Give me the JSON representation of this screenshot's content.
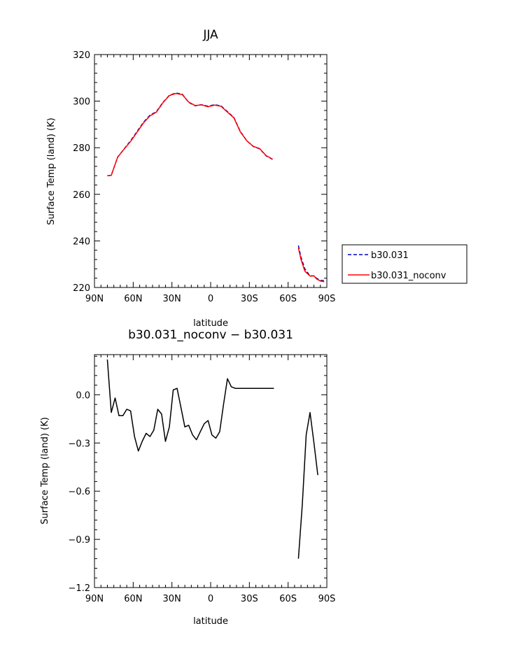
{
  "chart_data": [
    {
      "type": "line",
      "title": "JJA",
      "xlabel": "latitude",
      "ylabel": "Surface Temp (land) (K)",
      "xlim": [
        90,
        -90
      ],
      "ylim": [
        220,
        320
      ],
      "yticks": [
        220,
        240,
        260,
        280,
        300,
        320
      ],
      "xticks": [
        90,
        60,
        30,
        0,
        -30,
        -60,
        -90
      ],
      "xtick_labels": [
        "90N",
        "60N",
        "30N",
        "0",
        "30S",
        "60S",
        "90S"
      ],
      "legend_position": "right",
      "series": [
        {
          "name": "b30.031",
          "color": "#0000cc",
          "style": "dashed",
          "segments": [
            {
              "x": [
                80,
                77,
                72,
                67,
                62,
                57,
                52,
                47,
                42,
                37,
                32,
                27,
                22,
                17,
                12,
                7,
                2,
                -3,
                -8,
                -13,
                -18,
                -23,
                -28,
                -33,
                -38,
                -43,
                -48
              ],
              "y": [
                268,
                268.2,
                276,
                279.5,
                283,
                287,
                291,
                294,
                295.5,
                299.5,
                302.5,
                303.5,
                303,
                299.5,
                298,
                298.5,
                297.8,
                298.5,
                298,
                295.5,
                293,
                287,
                283,
                280.5,
                279.5,
                276.5,
                275
              ]
            },
            {
              "x": [
                -68,
                -70,
                -73,
                -77,
                -80,
                -82,
                -85,
                -88
              ],
              "y": [
                238,
                233,
                228,
                225,
                225,
                224,
                223,
                223
              ]
            }
          ]
        },
        {
          "name": "b30.031_noconv",
          "color": "#ff0000",
          "style": "solid",
          "segments": [
            {
              "x": [
                80,
                77,
                72,
                67,
                62,
                57,
                52,
                47,
                42,
                37,
                32,
                27,
                22,
                17,
                12,
                7,
                2,
                -3,
                -8,
                -13,
                -18,
                -23,
                -28,
                -33,
                -38,
                -43,
                -48
              ],
              "y": [
                268,
                268.1,
                276,
                279.4,
                282.7,
                286.7,
                290.7,
                293.7,
                295.3,
                299.3,
                302.4,
                303.3,
                302.8,
                299.6,
                298.1,
                298.4,
                297.6,
                298.3,
                297.8,
                295.3,
                292.8,
                286.8,
                283,
                280.6,
                279.6,
                276.6,
                275.1
              ]
            },
            {
              "x": [
                -68,
                -70,
                -73,
                -77,
                -80,
                -82,
                -85,
                -88
              ],
              "y": [
                237,
                232,
                227,
                224.9,
                225,
                223.7,
                222.8,
                222.5
              ]
            }
          ]
        }
      ]
    },
    {
      "type": "line",
      "title": "b30.031_noconv − b30.031",
      "xlabel": "latitude",
      "ylabel": "Surface Temp (land) (K)",
      "xlim": [
        90,
        -90
      ],
      "ylim": [
        -1.2,
        0.25
      ],
      "yticks": [
        -1.2,
        -0.9,
        -0.6,
        -0.3,
        0.0
      ],
      "ytick_labels": [
        "−1.2",
        "−0.9",
        "−0.6",
        "−0.3",
        "0.0"
      ],
      "xticks": [
        90,
        60,
        30,
        0,
        -30,
        -60,
        -90
      ],
      "xtick_labels": [
        "90N",
        "60N",
        "30N",
        "0",
        "30S",
        "60S",
        "90S"
      ],
      "series": [
        {
          "color": "#000000",
          "style": "solid",
          "segments": [
            {
              "x": [
                80,
                77,
                74,
                71,
                68,
                65,
                62,
                59,
                56,
                53,
                50,
                47,
                44,
                41,
                38,
                35,
                32,
                29,
                26,
                23,
                20,
                17,
                14,
                11,
                8,
                5,
                2,
                -1,
                -4,
                -7,
                -10,
                -13,
                -16,
                -19,
                -22,
                -25,
                -28,
                -31,
                -34,
                -37,
                -40,
                -43,
                -46,
                -49
              ],
              "y": [
                0.22,
                -0.11,
                -0.02,
                -0.13,
                -0.13,
                -0.09,
                -0.1,
                -0.26,
                -0.35,
                -0.29,
                -0.24,
                -0.26,
                -0.22,
                -0.09,
                -0.12,
                -0.29,
                -0.2,
                0.03,
                0.04,
                -0.08,
                -0.2,
                -0.19,
                -0.25,
                -0.28,
                -0.23,
                -0.18,
                -0.16,
                -0.25,
                -0.27,
                -0.23,
                -0.06,
                0.1,
                0.05,
                0.04,
                0.04,
                0.04,
                0.04,
                0.04,
                0.04,
                0.04,
                0.04,
                0.04,
                0.04,
                0.04
              ]
            },
            {
              "x": [
                -68,
                -71,
                -74,
                -77,
                -80,
                -83
              ],
              "y": [
                -1.02,
                -0.68,
                -0.25,
                -0.11,
                -0.3,
                -0.5
              ]
            }
          ]
        }
      ]
    }
  ]
}
